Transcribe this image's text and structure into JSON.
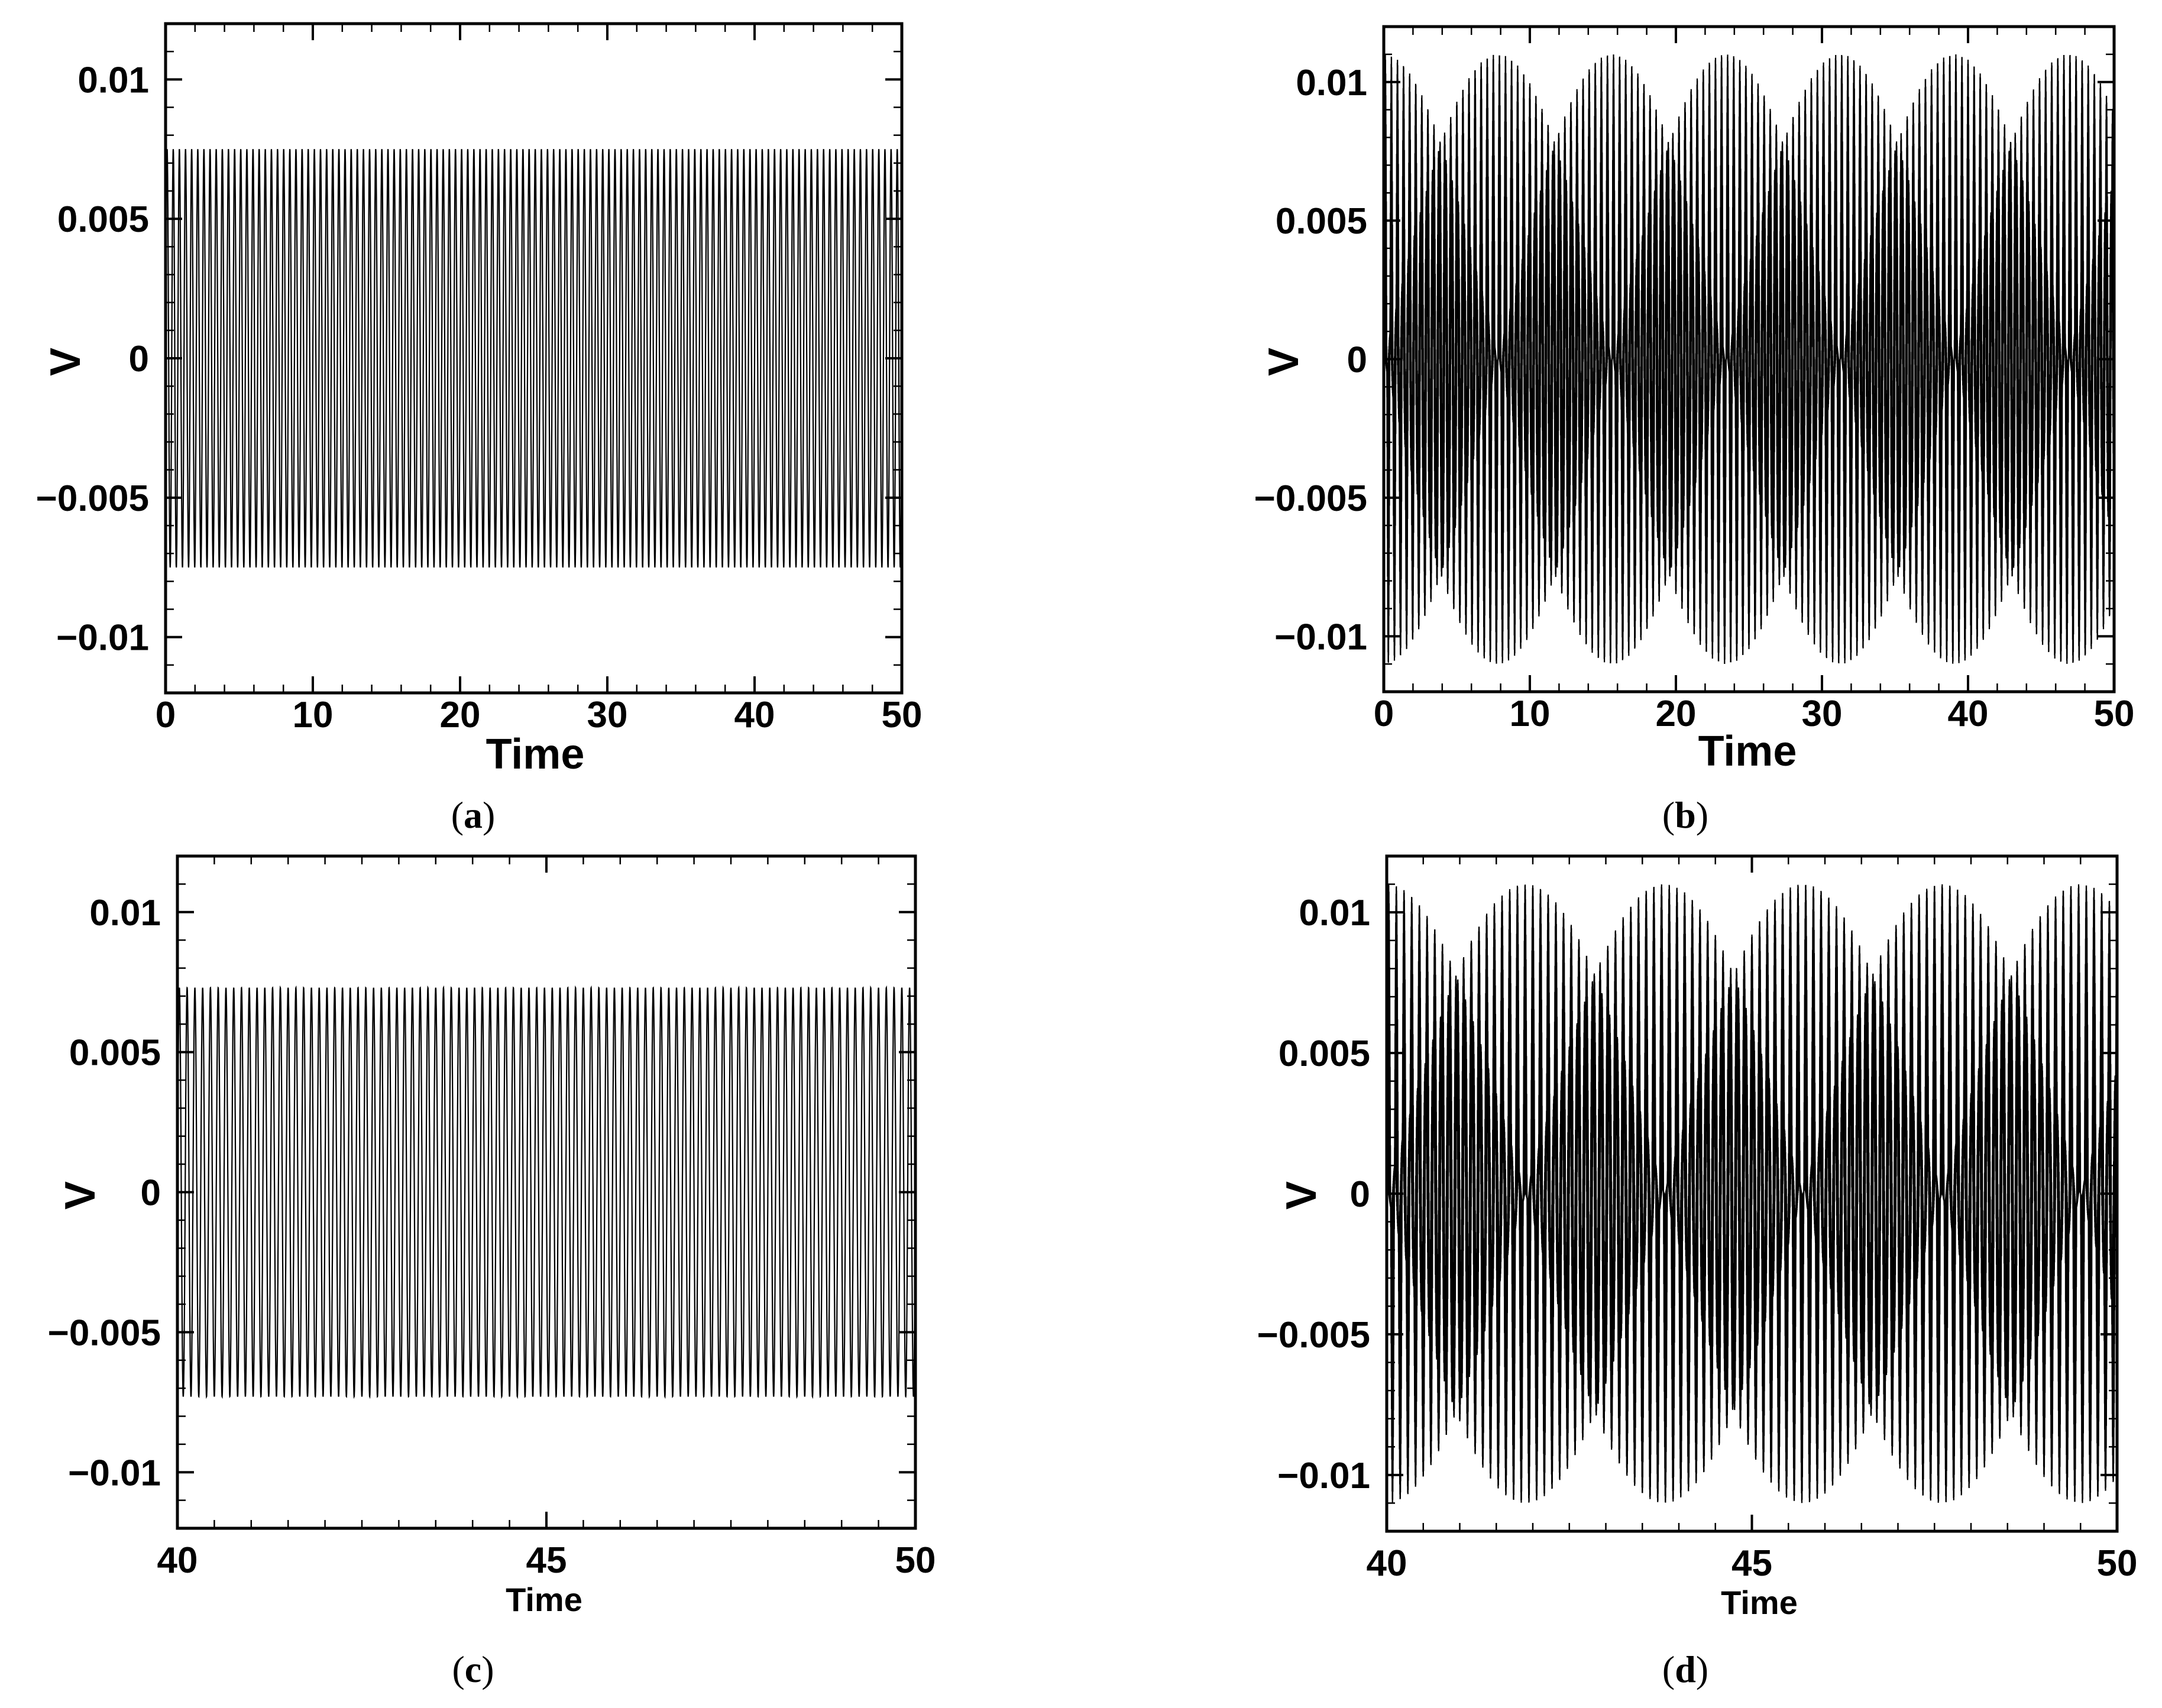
{
  "chart_data": [
    {
      "type": "line",
      "panel": "a",
      "panel_label": "a",
      "xlabel": "Time",
      "ylabel": "V",
      "xlim": [
        0,
        50
      ],
      "ylim": [
        -0.012,
        0.012
      ],
      "x_ticks": [
        "0",
        "10",
        "20",
        "30",
        "40",
        "50"
      ],
      "y_ticks": [
        "−0.01",
        "−0.005",
        "0",
        "0.005",
        "0.01"
      ],
      "series": [
        {
          "signal": "sinusoid",
          "amplitude": 0.0075,
          "cycles_shown": 120,
          "envelope": "constant"
        }
      ]
    },
    {
      "type": "line",
      "panel": "b",
      "panel_label": "b",
      "xlabel": "Time",
      "ylabel": "V",
      "xlim": [
        0,
        50
      ],
      "ylim": [
        -0.012,
        0.012
      ],
      "x_ticks": [
        "0",
        "10",
        "20",
        "30",
        "40",
        "50"
      ],
      "y_ticks": [
        "−0.01",
        "−0.005",
        "0",
        "0.005",
        "0.01"
      ],
      "series": [
        {
          "signal": "beating sinusoid",
          "amplitude": 0.011,
          "cycles_shown": 120,
          "envelope": "beating"
        }
      ]
    },
    {
      "type": "line",
      "panel": "c",
      "panel_label": "c",
      "xlabel": "Time",
      "ylabel": "V",
      "xlim": [
        40,
        50
      ],
      "ylim": [
        -0.012,
        0.012
      ],
      "x_ticks": [
        "40",
        "45",
        "50"
      ],
      "y_ticks": [
        "−0.01",
        "−0.005",
        "0",
        "0.005",
        "0.01"
      ],
      "series": [
        {
          "signal": "sinusoid",
          "amplitude": 0.0073,
          "cycles_shown": 95,
          "envelope": "constant"
        }
      ]
    },
    {
      "type": "line",
      "panel": "d",
      "panel_label": "d",
      "xlabel": "Time",
      "ylabel": "V",
      "xlim": [
        40,
        50
      ],
      "ylim": [
        -0.012,
        0.012
      ],
      "x_ticks": [
        "40",
        "45",
        "50"
      ],
      "y_ticks": [
        "−0.01",
        "−0.005",
        "0",
        "0.005",
        "0.01"
      ],
      "series": [
        {
          "signal": "beating sinusoid",
          "amplitude": 0.011,
          "cycles_shown": 95,
          "envelope": "beating",
          "beat_period": 3.8
        }
      ]
    }
  ]
}
